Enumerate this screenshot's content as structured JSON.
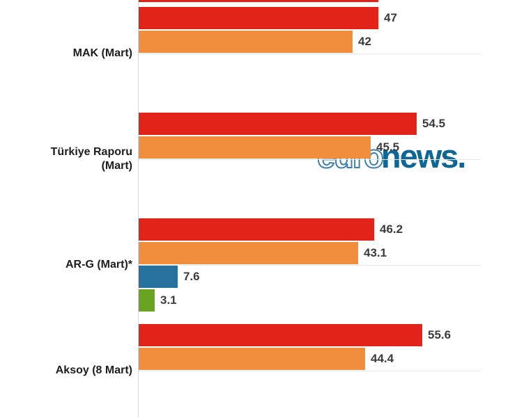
{
  "chart_data": {
    "type": "bar",
    "orientation": "horizontal",
    "title": "",
    "xlabel": "",
    "ylabel": "",
    "xlim": [
      0,
      67.1
    ],
    "grid": "faint horizontal line at each category band center",
    "legend": "none",
    "categories": [
      "MAK (Mart)",
      "Türkiye Raporu\n(Mart)",
      "AR-G (Mart)*",
      "Aksoy (8 Mart)"
    ],
    "series": [
      {
        "name": "red",
        "color": "#e2231a",
        "values": [
          47,
          54.5,
          46.2,
          55.6
        ]
      },
      {
        "name": "orange",
        "color": "#f18e3d",
        "values": [
          42,
          45.5,
          43.1,
          44.4
        ]
      },
      {
        "name": "blue",
        "color": "#26719e",
        "values": [
          null,
          null,
          7.6,
          null
        ]
      },
      {
        "name": "green",
        "color": "#69a322",
        "values": [
          null,
          null,
          3.1,
          null
        ]
      }
    ],
    "clipped_bar_at_top": {
      "color": "#e2231a",
      "end_value": 47
    }
  },
  "watermark": {
    "outline_text": "euro",
    "solid_text": "news."
  },
  "colors": {
    "red_bar": "#e2231a",
    "orange_bar": "#f18e3d",
    "blue_bar": "#26719e",
    "green_bar": "#69a322",
    "value_label_text": "#3c3c3c",
    "category_label_text": "#1d1d1d",
    "grid_line": "#e7e7e7",
    "axis_line": "#dadada",
    "logo_solid_blue": "#0d6695",
    "logo_outline_blue": "#4080a8"
  }
}
